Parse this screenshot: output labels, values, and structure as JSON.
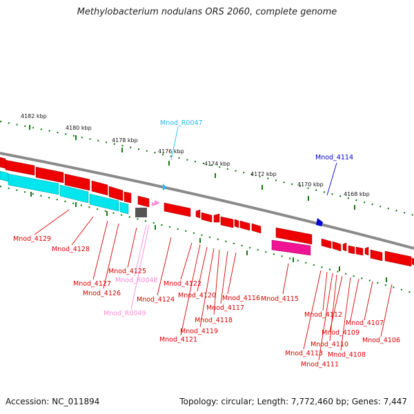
{
  "title": "Methylobacterium nodulans ORS 2060, complete genome",
  "accession": "Accession: NC_011894",
  "stats": "Topology: circular; Length: 7,772,460 bp; Genes: 7,447",
  "colors": {
    "backbone": "#8a8a8a",
    "gene_red": "#ee0000",
    "gene_cyan": "#00e5ee",
    "gene_magenta": "#ee1493",
    "gene_gray": "#555555",
    "trna_pink": "#ff8ad8",
    "rrna_cyan": "#22bbee",
    "blue": "#0000cc",
    "tick_green": "#117711"
  },
  "ruler": {
    "ticks": [
      "4182 kbp",
      "4180 kbp",
      "4178 kbp",
      "4176 kbp",
      "4174 kbp",
      "4172 kbp",
      "4170 kbp",
      "4168 kbp"
    ]
  },
  "labels": {
    "Mnod_4129": "Mnod_4129",
    "Mnod_4128": "Mnod_4128",
    "Mnod_4127": "Mnod_4127",
    "Mnod_4126": "Mnod_4126",
    "Mnod_4125": "Mnod_4125",
    "Mnod_R0048": "Mnod_R0048",
    "Mnod_R0049": "Mnod_R0049",
    "Mnod_R0047": "Mnod_R0047",
    "Mnod_4124": "Mnod_4124",
    "Mnod_4122": "Mnod_4122",
    "Mnod_4121": "Mnod_4121",
    "Mnod_4120": "Mnod_4120",
    "Mnod_4119": "Mnod_4119",
    "Mnod_4118": "Mnod_4118",
    "Mnod_4117": "Mnod_4117",
    "Mnod_4116": "Mnod_4116",
    "Mnod_4115": "Mnod_4115",
    "Mnod_4114": "Mnod_4114",
    "Mnod_4113": "Mnod_4113",
    "Mnod_4112": "Mnod_4112",
    "Mnod_4111": "Mnod_4111",
    "Mnod_4110": "Mnod_4110",
    "Mnod_4109": "Mnod_4109",
    "Mnod_4108": "Mnod_4108",
    "Mnod_4107": "Mnod_4107",
    "Mnod_4106": "Mnod_4106"
  }
}
